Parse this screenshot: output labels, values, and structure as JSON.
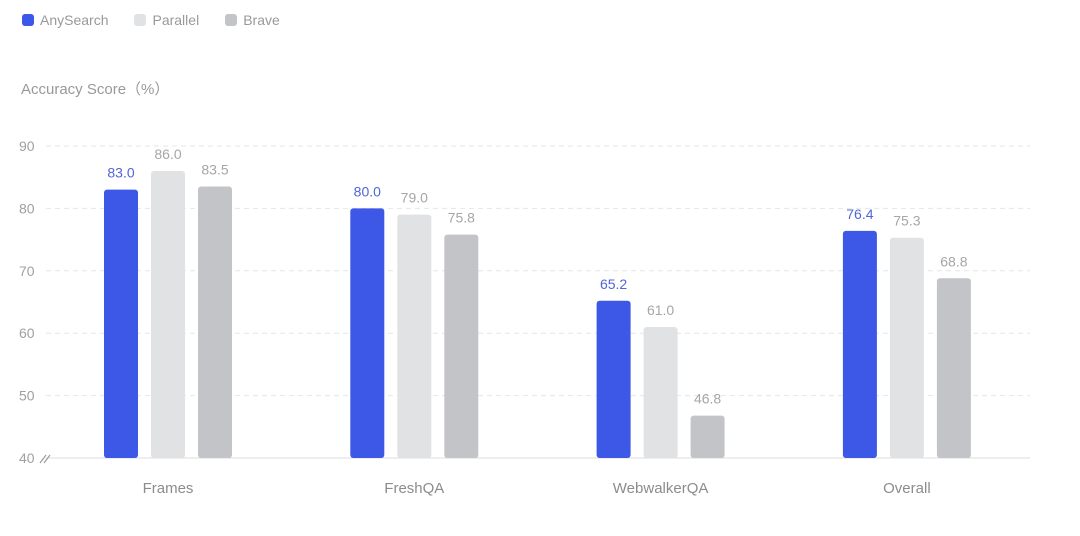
{
  "chart_data": {
    "type": "bar",
    "ylabel": "Accuracy Score（%）",
    "categories": [
      "Frames",
      "FreshQA",
      "WebwalkerQA",
      "Overall"
    ],
    "series": [
      {
        "name": "AnySearch",
        "color": "#3d57e6",
        "label_color": "#5065d8",
        "values": [
          83.0,
          80.0,
          65.2,
          76.4
        ],
        "labels": [
          "83.0",
          "80.0",
          "65.2",
          "76.4"
        ]
      },
      {
        "name": "Parallel",
        "color": "#e1e2e4",
        "label_color": "#a6a6a6",
        "values": [
          86.0,
          79.0,
          61.0,
          75.3
        ],
        "labels": [
          "86.0",
          "79.0",
          "61.0",
          "75.3"
        ]
      },
      {
        "name": "Brave",
        "color": "#c2c4c8",
        "label_color": "#a6a6a6",
        "values": [
          83.5,
          75.8,
          46.8,
          68.8
        ],
        "labels": [
          "83.5",
          "75.8",
          "46.8",
          "68.8"
        ]
      }
    ],
    "ylim": [
      40,
      90
    ],
    "yticks": [
      40,
      50,
      60,
      70,
      80,
      90
    ],
    "axis_break": true,
    "grid": true,
    "legend": "top-left"
  }
}
